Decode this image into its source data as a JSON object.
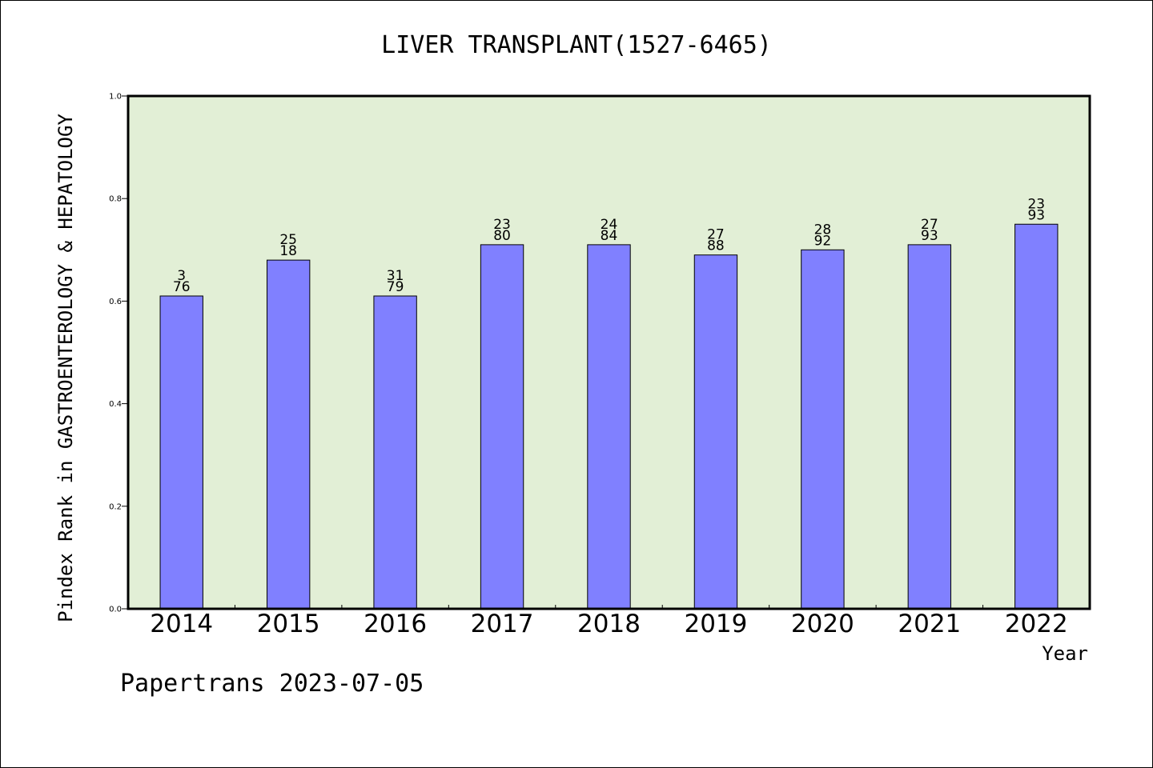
{
  "chart_data": {
    "type": "bar",
    "title": "LIVER TRANSPLANT(1527-6465)",
    "xlabel": "Year",
    "ylabel": "Pindex Rank in GASTROENTEROLOGY & HEPATOLOGY",
    "categories": [
      "2014",
      "2015",
      "2016",
      "2017",
      "2018",
      "2019",
      "2020",
      "2021",
      "2022"
    ],
    "values": [
      0.61,
      0.68,
      0.61,
      0.71,
      0.71,
      0.69,
      0.7,
      0.71,
      0.75
    ],
    "labels_top": [
      "3",
      "25",
      "31",
      "23",
      "24",
      "27",
      "28",
      "27",
      "23"
    ],
    "labels_bottom": [
      "76",
      "18",
      "79",
      "80",
      "84",
      "88",
      "92",
      "93",
      "93"
    ],
    "ylim": [
      0.0,
      1.0
    ],
    "yticks": [
      "0.0",
      "0.2",
      "0.4",
      "0.6",
      "0.8",
      "1.0"
    ],
    "bar_color": "#8080ff",
    "plot_background": "#e2efd6",
    "grid": false,
    "legend": "none"
  },
  "footer": "Papertrans 2023-07-05"
}
